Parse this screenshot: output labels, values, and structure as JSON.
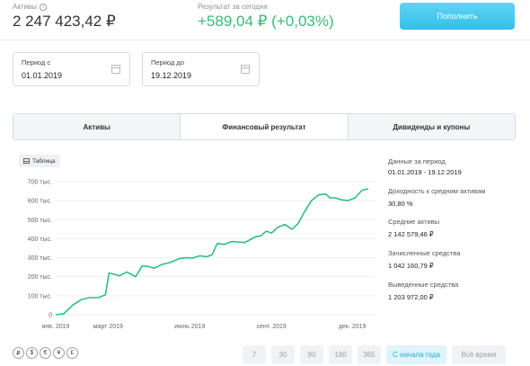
{
  "header": {
    "assets_label": "Активы",
    "assets_value": "2 247 423,42 ₽",
    "result_label": "Результат за сегодня",
    "result_value": "+589,04 ₽ (+0,03%)",
    "topup_label": "Пополнить"
  },
  "period": {
    "from_label": "Период с",
    "from_value": "01.01.2019",
    "to_label": "Период до",
    "to_value": "19.12.2019"
  },
  "tabs": [
    {
      "label": "Активы",
      "active": false
    },
    {
      "label": "Финансовый результат",
      "active": true
    },
    {
      "label": "Дивиденды и купоны",
      "active": false
    }
  ],
  "table_toggle_label": "Таблица",
  "stats": [
    {
      "label": "Данные за период",
      "value": "01.01.2019 - 19.12.2019"
    },
    {
      "label": "Доходность к средним активам",
      "value": "30,80 %"
    },
    {
      "label": "Средние активы",
      "value": "2 142 579,46 ₽"
    },
    {
      "label": "Зачисленные средства",
      "value": "1 042 160,79 ₽"
    },
    {
      "label": "Выведенные средства",
      "value": "1 203 972,00 ₽"
    }
  ],
  "currencies": [
    "₽",
    "$",
    "€",
    "¥",
    "£"
  ],
  "ranges": [
    {
      "label": "7",
      "active": false
    },
    {
      "label": "30",
      "active": false
    },
    {
      "label": "90",
      "active": false
    },
    {
      "label": "180",
      "active": false
    },
    {
      "label": "365",
      "active": false
    },
    {
      "label": "С начала года",
      "active": true
    },
    {
      "label": "Всё время",
      "active": false
    }
  ],
  "colors": {
    "accent": "#35bfe8",
    "line": "#2fbf7f",
    "positive": "#3cb878"
  },
  "chart_data": {
    "type": "line",
    "y_ticks": [
      "0",
      "100 тыс.",
      "200 тыс.",
      "300 тыс.",
      "400 тыс.",
      "500 тыс.",
      "600 тыс.",
      "700 тыс."
    ],
    "x_ticks": [
      {
        "label": "янв. 2019",
        "x": "2019-01-01"
      },
      {
        "label": "март 2019",
        "x": "2019-03-01"
      },
      {
        "label": "июнь 2019",
        "x": "2019-06-01"
      },
      {
        "label": "сент. 2019",
        "x": "2019-09-01"
      },
      {
        "label": "дек. 2019",
        "x": "2019-12-01"
      }
    ],
    "ylim": [
      0,
      700000
    ],
    "grid": true,
    "series": [
      {
        "x": [
          "2019-01-01",
          "2019-01-10",
          "2019-01-20",
          "2019-01-30",
          "2019-02-08",
          "2019-02-18",
          "2019-02-26",
          "2019-03-02",
          "2019-03-06",
          "2019-03-14",
          "2019-03-22",
          "2019-04-01",
          "2019-04-08",
          "2019-04-14",
          "2019-04-22",
          "2019-05-01",
          "2019-05-10",
          "2019-05-20",
          "2019-05-28",
          "2019-06-04",
          "2019-06-12",
          "2019-06-20",
          "2019-06-26",
          "2019-07-02",
          "2019-07-10",
          "2019-07-18",
          "2019-07-26",
          "2019-08-02",
          "2019-08-08",
          "2019-08-14",
          "2019-08-20",
          "2019-08-26",
          "2019-09-01",
          "2019-09-08",
          "2019-09-16",
          "2019-09-24",
          "2019-10-01",
          "2019-10-08",
          "2019-10-16",
          "2019-10-24",
          "2019-11-01",
          "2019-11-06",
          "2019-11-12",
          "2019-11-18",
          "2019-11-26",
          "2019-12-04",
          "2019-12-12",
          "2019-12-19"
        ],
        "values": [
          0,
          5000,
          50000,
          80000,
          90000,
          90000,
          105000,
          220000,
          215000,
          205000,
          225000,
          200000,
          255000,
          255000,
          245000,
          265000,
          275000,
          295000,
          300000,
          298000,
          310000,
          305000,
          315000,
          375000,
          370000,
          385000,
          382000,
          380000,
          395000,
          410000,
          415000,
          440000,
          430000,
          460000,
          475000,
          450000,
          480000,
          540000,
          600000,
          630000,
          635000,
          615000,
          615000,
          605000,
          600000,
          615000,
          655000,
          662000
        ]
      }
    ]
  }
}
